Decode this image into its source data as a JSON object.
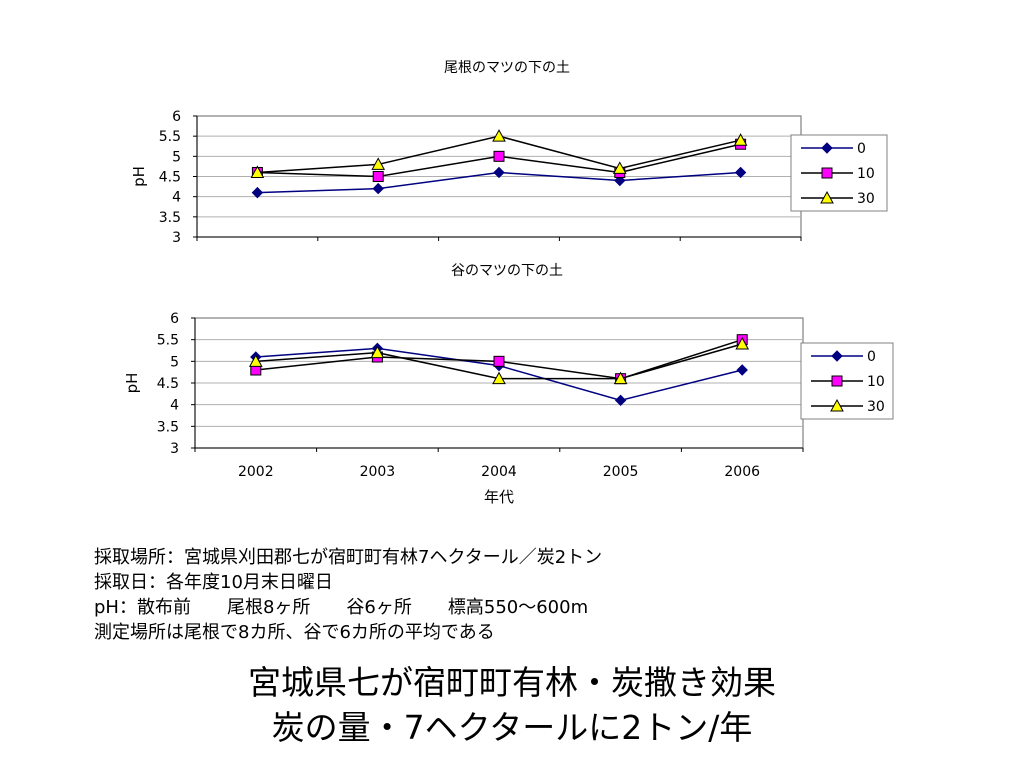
{
  "chart_data": [
    {
      "type": "line",
      "title": "尾根のマツの下の土",
      "ylabel": "pH",
      "xlabel": "",
      "categories": [
        "2002",
        "2003",
        "2004",
        "2005",
        "2006"
      ],
      "show_category_labels": false,
      "ylim": [
        3,
        6
      ],
      "yticks": [
        "3",
        "3.5",
        "4",
        "4.5",
        "5",
        "5.5",
        "6"
      ],
      "grid": true,
      "legend": "right",
      "series": [
        {
          "name": "0",
          "color": "#000080",
          "marker": "diamond",
          "values": [
            4.1,
            4.2,
            4.6,
            4.4,
            4.6
          ]
        },
        {
          "name": "10",
          "color": "#ff00ff",
          "marker": "square",
          "values": [
            4.6,
            4.5,
            5.0,
            4.6,
            5.3
          ]
        },
        {
          "name": "30",
          "color": "#ffff00",
          "marker": "triangle",
          "values": [
            4.6,
            4.8,
            5.5,
            4.7,
            5.4
          ]
        }
      ]
    },
    {
      "type": "line",
      "title": "谷のマツの下の土",
      "ylabel": "pH",
      "xlabel": "年代",
      "categories": [
        "2002",
        "2003",
        "2004",
        "2005",
        "2006"
      ],
      "show_category_labels": true,
      "ylim": [
        3,
        6
      ],
      "yticks": [
        "3",
        "3.5",
        "4",
        "4.5",
        "5",
        "5.5",
        "6"
      ],
      "grid": true,
      "legend": "right",
      "series": [
        {
          "name": "0",
          "color": "#000080",
          "marker": "diamond",
          "values": [
            5.1,
            5.3,
            4.9,
            4.1,
            4.8
          ]
        },
        {
          "name": "10",
          "color": "#ff00ff",
          "marker": "square",
          "values": [
            4.8,
            5.1,
            5.0,
            4.6,
            5.5
          ]
        },
        {
          "name": "30",
          "color": "#ffff00",
          "marker": "triangle",
          "values": [
            5.0,
            5.2,
            4.6,
            4.6,
            5.4
          ]
        }
      ]
    }
  ],
  "notes": {
    "line1": "採取場所：宮城県刈田郡七が宿町町有林7ヘクタール／炭2トン",
    "line2": "採取日：各年度10月末日曜日",
    "line3": "pH：散布前　　尾根8ヶ所　　谷6ヶ所　　標高550～600m",
    "line4": "測定場所は尾根で8カ所、谷で6カ所の平均である"
  },
  "headline": {
    "line1": "宮城県七が宿町町有林・炭撒き効果",
    "line2": "炭の量・7ヘクタールに2トン/年"
  }
}
